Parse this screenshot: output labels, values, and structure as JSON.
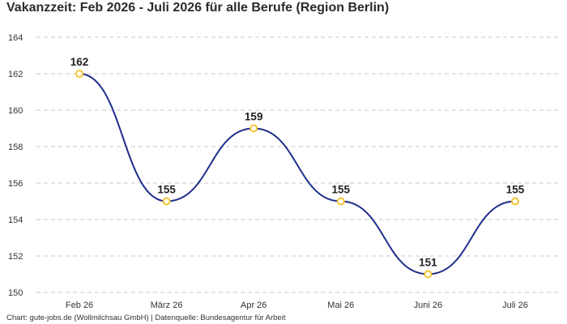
{
  "chart_data": {
    "type": "line",
    "title": "Vakanzzeit: Feb 2026 - Juli 2026 für alle Berufe (Region Berlin)",
    "source": "Chart: gute-jobs.de (Wollmilchsau GmbH) | Datenquelle: Bundesagentur für Arbeit",
    "categories": [
      "Feb 26",
      "März 26",
      "Apr 26",
      "Mai 26",
      "Juni 26",
      "Juli 26"
    ],
    "series": [
      {
        "values": [
          162,
          155,
          159,
          155,
          151,
          155
        ]
      }
    ],
    "ylim": [
      150,
      164
    ],
    "yticks": [
      150,
      152,
      154,
      156,
      158,
      160,
      162,
      164
    ],
    "xlabel": "",
    "ylabel": "",
    "grid": true,
    "smooth": true,
    "line_color": "#1f2d8a",
    "marker_edge_color": "#f2c531",
    "marker_fill_color": "#ffffff"
  }
}
